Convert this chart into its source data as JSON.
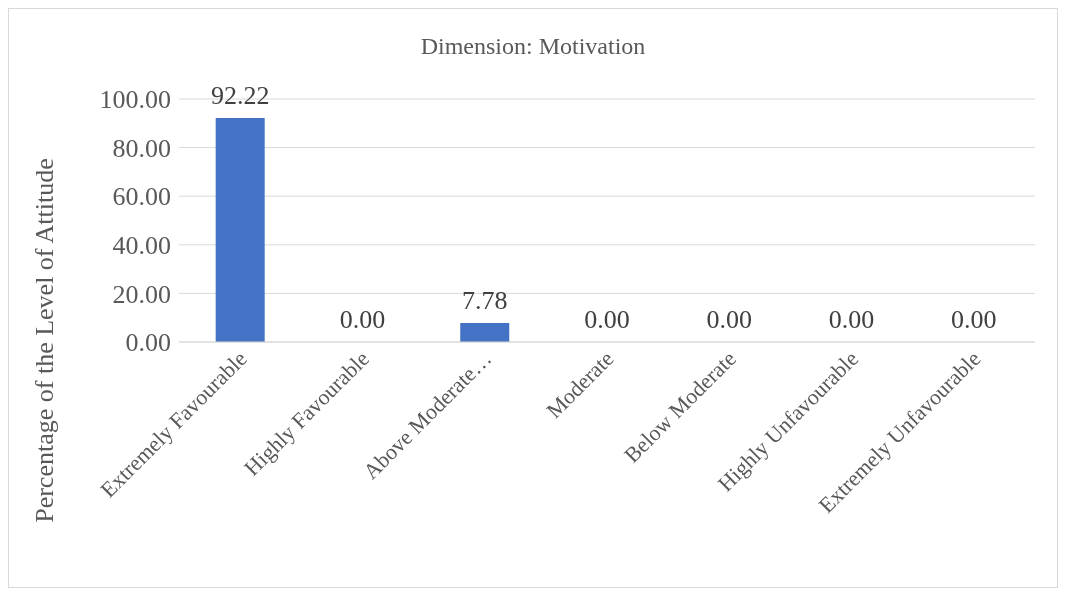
{
  "chart_data": {
    "type": "bar",
    "title": "Dimension: Motivation",
    "ylabel": "Percentage of the Level of Attitude",
    "categories": [
      "Extremely Favourable",
      "Highly Favourable",
      "Above Moderate…",
      "Moderate",
      "Below Moderate",
      "Highly Unfavourable",
      "Extremely Unfavourable"
    ],
    "values": [
      92.22,
      0,
      7.78,
      0,
      0,
      0,
      0
    ],
    "value_labels": [
      "92.22",
      "0.00",
      "7.78",
      "0.00",
      "0.00",
      "0.00",
      "0.00"
    ],
    "color": "#4472c4",
    "ylim": [
      0,
      100
    ],
    "yticks": [
      {
        "value": 0,
        "label": "0.00"
      },
      {
        "value": 20,
        "label": "20.00"
      },
      {
        "value": 40,
        "label": "40.00"
      },
      {
        "value": 60,
        "label": "60.00"
      },
      {
        "value": 80,
        "label": "80.00"
      },
      {
        "value": 100,
        "label": "100.00"
      }
    ],
    "grid": "y",
    "legend": false
  }
}
